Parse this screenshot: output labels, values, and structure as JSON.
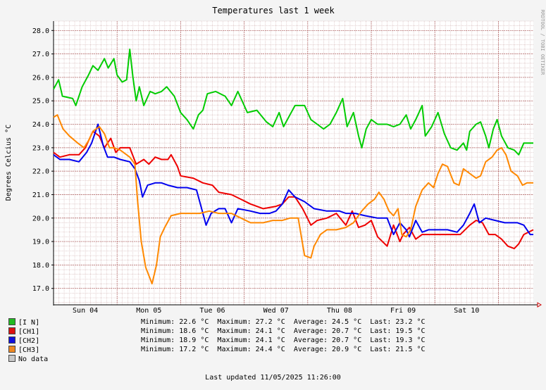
{
  "chart_data": {
    "type": "line",
    "title": "Temperatures last 1 week",
    "ylabel": "Degrees Celcius   °C",
    "side_label": "RRDTOOL / TOBI OETIKER",
    "ylim": [
      16.3,
      28.4
    ],
    "yticks": [
      "28.0",
      "27.0",
      "26.0",
      "25.0",
      "24.0",
      "23.0",
      "22.0",
      "21.0",
      "20.0",
      "19.0",
      "18.0",
      "17.0"
    ],
    "ytick_values": [
      28,
      27,
      26,
      25,
      24,
      23,
      22,
      21,
      20,
      19,
      18,
      17
    ],
    "x_range_days": [
      0,
      7.55
    ],
    "x_ticks": [
      {
        "label": "Sun 04",
        "day": 0.5
      },
      {
        "label": "Mon 05",
        "day": 1.5
      },
      {
        "label": "Tue 06",
        "day": 2.5
      },
      {
        "label": "Wed 07",
        "day": 3.5
      },
      {
        "label": "Thu 08",
        "day": 4.5
      },
      {
        "label": "Fri 09",
        "day": 5.5
      },
      {
        "label": "Sat 10",
        "day": 6.5
      }
    ],
    "series": [
      {
        "name": "[I N]",
        "color": "#00cc00",
        "points": [
          [
            0,
            25.5
          ],
          [
            0.08,
            25.9
          ],
          [
            0.14,
            25.2
          ],
          [
            0.3,
            25.1
          ],
          [
            0.35,
            24.8
          ],
          [
            0.45,
            25.6
          ],
          [
            0.55,
            26.1
          ],
          [
            0.62,
            26.5
          ],
          [
            0.7,
            26.3
          ],
          [
            0.8,
            26.8
          ],
          [
            0.86,
            26.4
          ],
          [
            0.95,
            26.8
          ],
          [
            1.0,
            26.1
          ],
          [
            1.08,
            25.8
          ],
          [
            1.15,
            25.9
          ],
          [
            1.2,
            27.2
          ],
          [
            1.25,
            26.0
          ],
          [
            1.3,
            25.0
          ],
          [
            1.35,
            25.6
          ],
          [
            1.42,
            24.8
          ],
          [
            1.52,
            25.4
          ],
          [
            1.6,
            25.3
          ],
          [
            1.7,
            25.4
          ],
          [
            1.78,
            25.6
          ],
          [
            1.9,
            25.2
          ],
          [
            2.0,
            24.5
          ],
          [
            2.1,
            24.2
          ],
          [
            2.2,
            23.8
          ],
          [
            2.28,
            24.4
          ],
          [
            2.35,
            24.6
          ],
          [
            2.42,
            25.3
          ],
          [
            2.55,
            25.4
          ],
          [
            2.7,
            25.2
          ],
          [
            2.8,
            24.8
          ],
          [
            2.9,
            25.4
          ],
          [
            3.05,
            24.5
          ],
          [
            3.2,
            24.6
          ],
          [
            3.35,
            24.1
          ],
          [
            3.45,
            23.9
          ],
          [
            3.55,
            24.5
          ],
          [
            3.62,
            23.9
          ],
          [
            3.72,
            24.4
          ],
          [
            3.8,
            24.8
          ],
          [
            3.95,
            24.8
          ],
          [
            4.05,
            24.2
          ],
          [
            4.15,
            24.0
          ],
          [
            4.25,
            23.8
          ],
          [
            4.35,
            24.0
          ],
          [
            4.45,
            24.5
          ],
          [
            4.55,
            25.1
          ],
          [
            4.62,
            23.9
          ],
          [
            4.72,
            24.5
          ],
          [
            4.8,
            23.5
          ],
          [
            4.85,
            23.0
          ],
          [
            4.92,
            23.8
          ],
          [
            5.0,
            24.2
          ],
          [
            5.1,
            24.0
          ],
          [
            5.25,
            24.0
          ],
          [
            5.35,
            23.9
          ],
          [
            5.45,
            24.0
          ],
          [
            5.55,
            24.4
          ],
          [
            5.62,
            23.8
          ],
          [
            5.7,
            24.2
          ],
          [
            5.8,
            24.8
          ],
          [
            5.85,
            23.5
          ],
          [
            5.95,
            23.9
          ],
          [
            6.05,
            24.5
          ],
          [
            6.15,
            23.6
          ],
          [
            6.25,
            23.0
          ],
          [
            6.35,
            22.9
          ],
          [
            6.45,
            23.2
          ],
          [
            6.5,
            22.9
          ],
          [
            6.55,
            23.7
          ],
          [
            6.65,
            24.0
          ],
          [
            6.72,
            24.1
          ],
          [
            6.8,
            23.5
          ],
          [
            6.85,
            23.0
          ],
          [
            6.92,
            23.8
          ],
          [
            6.98,
            24.2
          ],
          [
            7.05,
            23.5
          ],
          [
            7.15,
            23.0
          ],
          [
            7.25,
            22.9
          ],
          [
            7.32,
            22.7
          ],
          [
            7.4,
            23.2
          ],
          [
            7.55,
            23.2
          ]
        ]
      },
      {
        "name": "[CH1]",
        "color": "#ee0000",
        "points": [
          [
            0,
            22.8
          ],
          [
            0.1,
            22.6
          ],
          [
            0.25,
            22.7
          ],
          [
            0.4,
            22.7
          ],
          [
            0.5,
            23.0
          ],
          [
            0.62,
            23.7
          ],
          [
            0.72,
            23.5
          ],
          [
            0.8,
            23.0
          ],
          [
            0.9,
            23.4
          ],
          [
            0.98,
            22.8
          ],
          [
            1.05,
            23.0
          ],
          [
            1.2,
            23.0
          ],
          [
            1.3,
            22.3
          ],
          [
            1.42,
            22.5
          ],
          [
            1.5,
            22.3
          ],
          [
            1.6,
            22.6
          ],
          [
            1.7,
            22.5
          ],
          [
            1.8,
            22.5
          ],
          [
            1.85,
            22.7
          ],
          [
            1.95,
            22.2
          ],
          [
            2.0,
            21.8
          ],
          [
            2.2,
            21.7
          ],
          [
            2.35,
            21.5
          ],
          [
            2.5,
            21.4
          ],
          [
            2.6,
            21.1
          ],
          [
            2.8,
            21.0
          ],
          [
            2.95,
            20.8
          ],
          [
            3.1,
            20.6
          ],
          [
            3.3,
            20.4
          ],
          [
            3.5,
            20.5
          ],
          [
            3.6,
            20.6
          ],
          [
            3.7,
            20.9
          ],
          [
            3.8,
            20.9
          ],
          [
            3.92,
            20.4
          ],
          [
            4.05,
            19.7
          ],
          [
            4.15,
            19.9
          ],
          [
            4.3,
            20.0
          ],
          [
            4.45,
            20.2
          ],
          [
            4.6,
            19.7
          ],
          [
            4.7,
            20.3
          ],
          [
            4.8,
            19.6
          ],
          [
            4.9,
            19.7
          ],
          [
            5.0,
            19.9
          ],
          [
            5.1,
            19.2
          ],
          [
            5.25,
            18.8
          ],
          [
            5.35,
            19.7
          ],
          [
            5.45,
            19.0
          ],
          [
            5.5,
            19.3
          ],
          [
            5.6,
            19.6
          ],
          [
            5.7,
            19.1
          ],
          [
            5.8,
            19.3
          ],
          [
            5.9,
            19.3
          ],
          [
            6.0,
            19.3
          ],
          [
            6.2,
            19.3
          ],
          [
            6.4,
            19.3
          ],
          [
            6.55,
            19.7
          ],
          [
            6.65,
            19.9
          ],
          [
            6.75,
            19.8
          ],
          [
            6.85,
            19.3
          ],
          [
            6.95,
            19.3
          ],
          [
            7.05,
            19.1
          ],
          [
            7.15,
            18.8
          ],
          [
            7.25,
            18.7
          ],
          [
            7.32,
            18.9
          ],
          [
            7.4,
            19.3
          ],
          [
            7.55,
            19.5
          ]
        ]
      },
      {
        "name": "[CH2]",
        "color": "#0000ee",
        "points": [
          [
            0,
            22.7
          ],
          [
            0.1,
            22.5
          ],
          [
            0.25,
            22.5
          ],
          [
            0.4,
            22.4
          ],
          [
            0.52,
            22.8
          ],
          [
            0.6,
            23.2
          ],
          [
            0.7,
            24.0
          ],
          [
            0.78,
            23.1
          ],
          [
            0.85,
            22.6
          ],
          [
            0.95,
            22.6
          ],
          [
            1.05,
            22.5
          ],
          [
            1.2,
            22.4
          ],
          [
            1.28,
            22.1
          ],
          [
            1.35,
            21.6
          ],
          [
            1.4,
            20.9
          ],
          [
            1.48,
            21.4
          ],
          [
            1.6,
            21.5
          ],
          [
            1.7,
            21.5
          ],
          [
            1.8,
            21.4
          ],
          [
            1.95,
            21.3
          ],
          [
            2.1,
            21.3
          ],
          [
            2.25,
            21.2
          ],
          [
            2.32,
            20.5
          ],
          [
            2.4,
            19.7
          ],
          [
            2.48,
            20.2
          ],
          [
            2.6,
            20.4
          ],
          [
            2.7,
            20.4
          ],
          [
            2.8,
            19.8
          ],
          [
            2.9,
            20.4
          ],
          [
            3.1,
            20.3
          ],
          [
            3.25,
            20.2
          ],
          [
            3.4,
            20.2
          ],
          [
            3.5,
            20.3
          ],
          [
            3.6,
            20.6
          ],
          [
            3.7,
            21.2
          ],
          [
            3.8,
            20.9
          ],
          [
            3.95,
            20.7
          ],
          [
            4.1,
            20.4
          ],
          [
            4.3,
            20.3
          ],
          [
            4.5,
            20.3
          ],
          [
            4.6,
            20.2
          ],
          [
            4.75,
            20.2
          ],
          [
            4.9,
            20.1
          ],
          [
            5.1,
            20.0
          ],
          [
            5.25,
            20.0
          ],
          [
            5.35,
            19.3
          ],
          [
            5.45,
            19.8
          ],
          [
            5.55,
            19.5
          ],
          [
            5.6,
            19.2
          ],
          [
            5.7,
            19.9
          ],
          [
            5.8,
            19.4
          ],
          [
            5.9,
            19.5
          ],
          [
            6.0,
            19.5
          ],
          [
            6.2,
            19.5
          ],
          [
            6.35,
            19.4
          ],
          [
            6.45,
            19.7
          ],
          [
            6.55,
            20.2
          ],
          [
            6.62,
            20.6
          ],
          [
            6.7,
            19.8
          ],
          [
            6.8,
            20.0
          ],
          [
            6.95,
            19.9
          ],
          [
            7.1,
            19.8
          ],
          [
            7.3,
            19.8
          ],
          [
            7.4,
            19.7
          ],
          [
            7.5,
            19.3
          ],
          [
            7.55,
            19.3
          ]
        ]
      },
      {
        "name": "[CH3]",
        "color": "#ff8800",
        "points": [
          [
            0,
            24.3
          ],
          [
            0.06,
            24.4
          ],
          [
            0.15,
            23.8
          ],
          [
            0.25,
            23.5
          ],
          [
            0.38,
            23.2
          ],
          [
            0.48,
            23.0
          ],
          [
            0.55,
            23.3
          ],
          [
            0.62,
            23.7
          ],
          [
            0.72,
            23.9
          ],
          [
            0.8,
            23.6
          ],
          [
            0.88,
            23.0
          ],
          [
            0.95,
            23.0
          ],
          [
            1.05,
            22.9
          ],
          [
            1.2,
            22.6
          ],
          [
            1.28,
            22.3
          ],
          [
            1.32,
            20.8
          ],
          [
            1.38,
            19.0
          ],
          [
            1.45,
            17.9
          ],
          [
            1.55,
            17.2
          ],
          [
            1.62,
            18.0
          ],
          [
            1.68,
            19.2
          ],
          [
            1.75,
            19.6
          ],
          [
            1.85,
            20.1
          ],
          [
            2.0,
            20.2
          ],
          [
            2.15,
            20.2
          ],
          [
            2.3,
            20.2
          ],
          [
            2.45,
            20.3
          ],
          [
            2.6,
            20.2
          ],
          [
            2.8,
            20.2
          ],
          [
            2.95,
            20.0
          ],
          [
            3.1,
            19.8
          ],
          [
            3.3,
            19.8
          ],
          [
            3.45,
            19.9
          ],
          [
            3.6,
            19.9
          ],
          [
            3.72,
            20.0
          ],
          [
            3.85,
            20.0
          ],
          [
            3.95,
            18.4
          ],
          [
            4.05,
            18.3
          ],
          [
            4.1,
            18.8
          ],
          [
            4.2,
            19.3
          ],
          [
            4.3,
            19.5
          ],
          [
            4.45,
            19.5
          ],
          [
            4.6,
            19.6
          ],
          [
            4.72,
            19.8
          ],
          [
            4.85,
            20.3
          ],
          [
            4.95,
            20.6
          ],
          [
            5.05,
            20.8
          ],
          [
            5.12,
            21.1
          ],
          [
            5.2,
            20.8
          ],
          [
            5.28,
            20.3
          ],
          [
            5.35,
            20.1
          ],
          [
            5.42,
            20.4
          ],
          [
            5.48,
            19.3
          ],
          [
            5.55,
            19.2
          ],
          [
            5.62,
            19.5
          ],
          [
            5.7,
            20.5
          ],
          [
            5.8,
            21.2
          ],
          [
            5.9,
            21.5
          ],
          [
            5.98,
            21.3
          ],
          [
            6.05,
            21.9
          ],
          [
            6.12,
            22.3
          ],
          [
            6.2,
            22.2
          ],
          [
            6.3,
            21.5
          ],
          [
            6.38,
            21.4
          ],
          [
            6.45,
            22.1
          ],
          [
            6.55,
            21.9
          ],
          [
            6.65,
            21.7
          ],
          [
            6.72,
            21.8
          ],
          [
            6.8,
            22.4
          ],
          [
            6.9,
            22.6
          ],
          [
            6.98,
            22.9
          ],
          [
            7.05,
            23.0
          ],
          [
            7.12,
            22.7
          ],
          [
            7.2,
            22.0
          ],
          [
            7.3,
            21.8
          ],
          [
            7.38,
            21.4
          ],
          [
            7.45,
            21.5
          ],
          [
            7.55,
            21.5
          ]
        ]
      }
    ]
  },
  "legend": [
    {
      "label": "[I N]",
      "color": "#22bb22",
      "min": "22.6",
      "max": "27.2",
      "avg": "24.5",
      "last": "23.2"
    },
    {
      "label": "[CH1]",
      "color": "#dd1111",
      "min": "18.6",
      "max": "24.1",
      "avg": "20.7",
      "last": "19.5"
    },
    {
      "label": "[CH2]",
      "color": "#1111dd",
      "min": "18.9",
      "max": "24.1",
      "avg": "20.7",
      "last": "19.3"
    },
    {
      "label": "[CH3]",
      "color": "#ee8822",
      "min": "17.2",
      "max": "24.4",
      "avg": "20.9",
      "last": "21.5"
    },
    {
      "label": "No data",
      "color": "#c8c8c8"
    }
  ],
  "stats_labels": {
    "minimum": "Minimum:",
    "maximum": "Maximum:",
    "average": "Average:",
    "last": "Last:",
    "unit": "°C"
  },
  "footer": {
    "last_updated": "Last updated 11/05/2025 11:26:00"
  }
}
